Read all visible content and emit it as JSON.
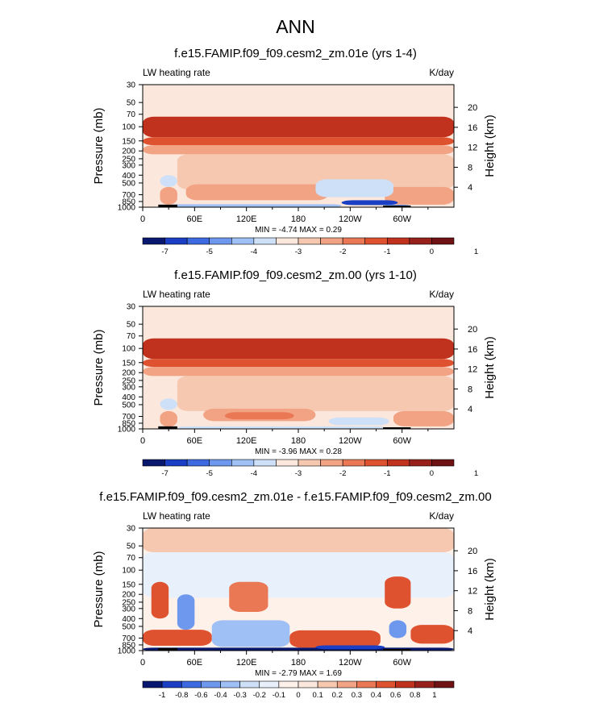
{
  "page_title": "ANN",
  "chart_data": [
    {
      "type": "heatmap",
      "title": "f.e15.FAMIP.f09_f09.cesm2_zm.01e (yrs 1-4)",
      "left_label": "LW heating rate",
      "units": "K/day",
      "ylabel": "Pressure (mb)",
      "ylabel_right": "Height (km)",
      "x_ticks": [
        "0",
        "60E",
        "120E",
        "180",
        "120W",
        "60W"
      ],
      "x_tick_values": [
        0,
        60,
        120,
        180,
        240,
        300
      ],
      "xlim": [
        0,
        360
      ],
      "y_ticks": [
        "30",
        "50",
        "70",
        "100",
        "150",
        "200",
        "250",
        "300",
        "400",
        "500",
        "700",
        "850",
        "1000"
      ],
      "y_tick_values": [
        30,
        50,
        70,
        100,
        150,
        200,
        250,
        300,
        400,
        500,
        700,
        850,
        1000
      ],
      "ylim": [
        30,
        1000
      ],
      "height_ticks": [
        "4",
        "8",
        "12",
        "16",
        "20"
      ],
      "height_tick_values": [
        4,
        8,
        12,
        16,
        20
      ],
      "stats": "MIN = -4.74  MAX =  0.29",
      "colorbar_labels": [
        "-7",
        "-5",
        "-4",
        "-3",
        "-2",
        "-1",
        "0",
        "1"
      ],
      "colorbar_colors": [
        "#08186e",
        "#1a3ec4",
        "#3d6ae0",
        "#6e98ee",
        "#9ec0f4",
        "#cde0f8",
        "#fbe7dc",
        "#f6c8b0",
        "#f1a384",
        "#ea7855",
        "#de5230",
        "#c1321e",
        "#98201a",
        "#6e1214"
      ],
      "annotations": [
        "MIN = -4.74  MAX =  0.29"
      ],
      "field": [
        {
          "lon": [
            0,
            360
          ],
          "p": [
            75,
            135
          ],
          "level": 11
        },
        {
          "lon": [
            0,
            360
          ],
          "p": [
            135,
            170
          ],
          "level": 10
        },
        {
          "lon": [
            0,
            360
          ],
          "p": [
            170,
            220
          ],
          "level": 8
        },
        {
          "lon": [
            40,
            360
          ],
          "p": [
            220,
            600
          ],
          "level": 7
        },
        {
          "lon": [
            50,
            215
          ],
          "p": [
            520,
            820
          ],
          "level": 8
        },
        {
          "lon": [
            280,
            360
          ],
          "p": [
            560,
            930
          ],
          "level": 8
        },
        {
          "lon": [
            20,
            40
          ],
          "p": [
            560,
            930
          ],
          "level": 8
        },
        {
          "lon": [
            200,
            290
          ],
          "p": [
            450,
            750
          ],
          "level": 5
        },
        {
          "lon": [
            20,
            40
          ],
          "p": [
            400,
            560
          ],
          "level": 5
        },
        {
          "lon": [
            230,
            295
          ],
          "p": [
            820,
            940
          ],
          "level": 1
        },
        {
          "lon": [
            30,
            230
          ],
          "p": [
            920,
            1000
          ],
          "level": 4
        },
        {
          "lon": [
            280,
            310
          ],
          "p": [
            930,
            1000
          ],
          "level": 3
        }
      ],
      "land": [
        {
          "lon": [
            18,
            40
          ],
          "p": [
            930,
            1000
          ]
        },
        {
          "lon": [
            278,
            310
          ],
          "p": [
            955,
            1000
          ]
        }
      ]
    },
    {
      "type": "heatmap",
      "title": "f.e15.FAMIP.f09_f09.cesm2_zm.00 (yrs 1-10)",
      "left_label": "LW heating rate",
      "units": "K/day",
      "ylabel": "Pressure (mb)",
      "ylabel_right": "Height (km)",
      "x_ticks": [
        "0",
        "60E",
        "120E",
        "180",
        "120W",
        "60W"
      ],
      "x_tick_values": [
        0,
        60,
        120,
        180,
        240,
        300
      ],
      "xlim": [
        0,
        360
      ],
      "y_ticks": [
        "30",
        "50",
        "70",
        "100",
        "150",
        "200",
        "250",
        "300",
        "400",
        "500",
        "700",
        "850",
        "1000"
      ],
      "y_tick_values": [
        30,
        50,
        70,
        100,
        150,
        200,
        250,
        300,
        400,
        500,
        700,
        850,
        1000
      ],
      "ylim": [
        30,
        1000
      ],
      "height_ticks": [
        "4",
        "8",
        "12",
        "16",
        "20"
      ],
      "height_tick_values": [
        4,
        8,
        12,
        16,
        20
      ],
      "stats": "MIN = -3.96  MAX =  0.28",
      "colorbar_labels": [
        "-7",
        "-5",
        "-4",
        "-3",
        "-2",
        "-1",
        "0",
        "1"
      ],
      "colorbar_colors": [
        "#08186e",
        "#1a3ec4",
        "#3d6ae0",
        "#6e98ee",
        "#9ec0f4",
        "#cde0f8",
        "#fbe7dc",
        "#f6c8b0",
        "#f1a384",
        "#ea7855",
        "#de5230",
        "#c1321e",
        "#98201a",
        "#6e1214"
      ],
      "annotations": [
        "MIN = -3.96  MAX =  0.28"
      ],
      "field": [
        {
          "lon": [
            0,
            360
          ],
          "p": [
            75,
            135
          ],
          "level": 11
        },
        {
          "lon": [
            0,
            360
          ],
          "p": [
            135,
            170
          ],
          "level": 10
        },
        {
          "lon": [
            0,
            360
          ],
          "p": [
            170,
            220
          ],
          "level": 8
        },
        {
          "lon": [
            40,
            360
          ],
          "p": [
            220,
            600
          ],
          "level": 7
        },
        {
          "lon": [
            70,
            200
          ],
          "p": [
            560,
            800
          ],
          "level": 8
        },
        {
          "lon": [
            95,
            175
          ],
          "p": [
            620,
            760
          ],
          "level": 9
        },
        {
          "lon": [
            290,
            360
          ],
          "p": [
            600,
            930
          ],
          "level": 8
        },
        {
          "lon": [
            20,
            40
          ],
          "p": [
            600,
            940
          ],
          "level": 8
        },
        {
          "lon": [
            215,
            285
          ],
          "p": [
            720,
            900
          ],
          "level": 5
        },
        {
          "lon": [
            20,
            40
          ],
          "p": [
            420,
            580
          ],
          "level": 5
        },
        {
          "lon": [
            40,
            280
          ],
          "p": [
            930,
            1000
          ],
          "level": 5
        }
      ],
      "land": [
        {
          "lon": [
            18,
            40
          ],
          "p": [
            930,
            1000
          ]
        },
        {
          "lon": [
            278,
            310
          ],
          "p": [
            955,
            1000
          ]
        }
      ]
    },
    {
      "type": "heatmap",
      "title": "f.e15.FAMIP.f09_f09.cesm2_zm.01e - f.e15.FAMIP.f09_f09.cesm2_zm.00",
      "left_label": "LW heating rate",
      "units": "K/day",
      "ylabel": "Pressure (mb)",
      "ylabel_right": "Height (km)",
      "x_ticks": [
        "0",
        "60E",
        "120E",
        "180",
        "120W",
        "60W"
      ],
      "x_tick_values": [
        0,
        60,
        120,
        180,
        240,
        300
      ],
      "xlim": [
        0,
        360
      ],
      "y_ticks": [
        "30",
        "50",
        "70",
        "100",
        "150",
        "200",
        "250",
        "300",
        "400",
        "500",
        "700",
        "850",
        "1000"
      ],
      "y_tick_values": [
        30,
        50,
        70,
        100,
        150,
        200,
        250,
        300,
        400,
        500,
        700,
        850,
        1000
      ],
      "ylim": [
        30,
        1000
      ],
      "height_ticks": [
        "4",
        "8",
        "12",
        "16",
        "20"
      ],
      "height_tick_values": [
        4,
        8,
        12,
        16,
        20
      ],
      "stats": "MIN = -2.79  MAX =  1.69",
      "colorbar_labels": [
        "-1",
        "-0.8",
        "-0.6",
        "-0.4",
        "-0.3",
        "-0.2",
        "-0.1",
        "0",
        "0.1",
        "0.2",
        "0.3",
        "0.4",
        "0.6",
        "0.8",
        "1"
      ],
      "colorbar_colors": [
        "#08186e",
        "#1a3ec4",
        "#3d6ae0",
        "#6e98ee",
        "#9ec0f4",
        "#cde0f8",
        "#e8f0fb",
        "#fdf1ea",
        "#fbe7dc",
        "#f6c8b0",
        "#f1a384",
        "#ea7855",
        "#de5230",
        "#c1321e",
        "#98201a",
        "#6e1214"
      ],
      "annotations": [
        "MIN = -2.79  MAX =  1.69"
      ],
      "field": [
        {
          "lon": [
            0,
            360
          ],
          "p": [
            30,
            60
          ],
          "level": 9
        },
        {
          "lon": [
            0,
            360
          ],
          "p": [
            60,
            220
          ],
          "level": 6
        },
        {
          "lon": [
            10,
            30
          ],
          "p": [
            140,
            400
          ],
          "level": 12
        },
        {
          "lon": [
            40,
            60
          ],
          "p": [
            200,
            550
          ],
          "level": 3
        },
        {
          "lon": [
            100,
            145
          ],
          "p": [
            140,
            330
          ],
          "level": 11
        },
        {
          "lon": [
            280,
            310
          ],
          "p": [
            120,
            300
          ],
          "level": 12
        },
        {
          "lon": [
            285,
            305
          ],
          "p": [
            420,
            700
          ],
          "level": 3
        },
        {
          "lon": [
            0,
            80
          ],
          "p": [
            550,
            870
          ],
          "level": 12
        },
        {
          "lon": [
            80,
            170
          ],
          "p": [
            420,
            900
          ],
          "level": 4
        },
        {
          "lon": [
            170,
            275
          ],
          "p": [
            560,
            920
          ],
          "level": 12
        },
        {
          "lon": [
            310,
            360
          ],
          "p": [
            480,
            820
          ],
          "level": 12
        },
        {
          "lon": [
            0,
            360
          ],
          "p": [
            920,
            1000
          ],
          "level": 0
        },
        {
          "lon": [
            200,
            280
          ],
          "p": [
            860,
            960
          ],
          "level": 1
        }
      ],
      "land": [
        {
          "lon": [
            18,
            40
          ],
          "p": [
            930,
            1000
          ]
        },
        {
          "lon": [
            278,
            310
          ],
          "p": [
            955,
            1000
          ]
        }
      ]
    }
  ]
}
